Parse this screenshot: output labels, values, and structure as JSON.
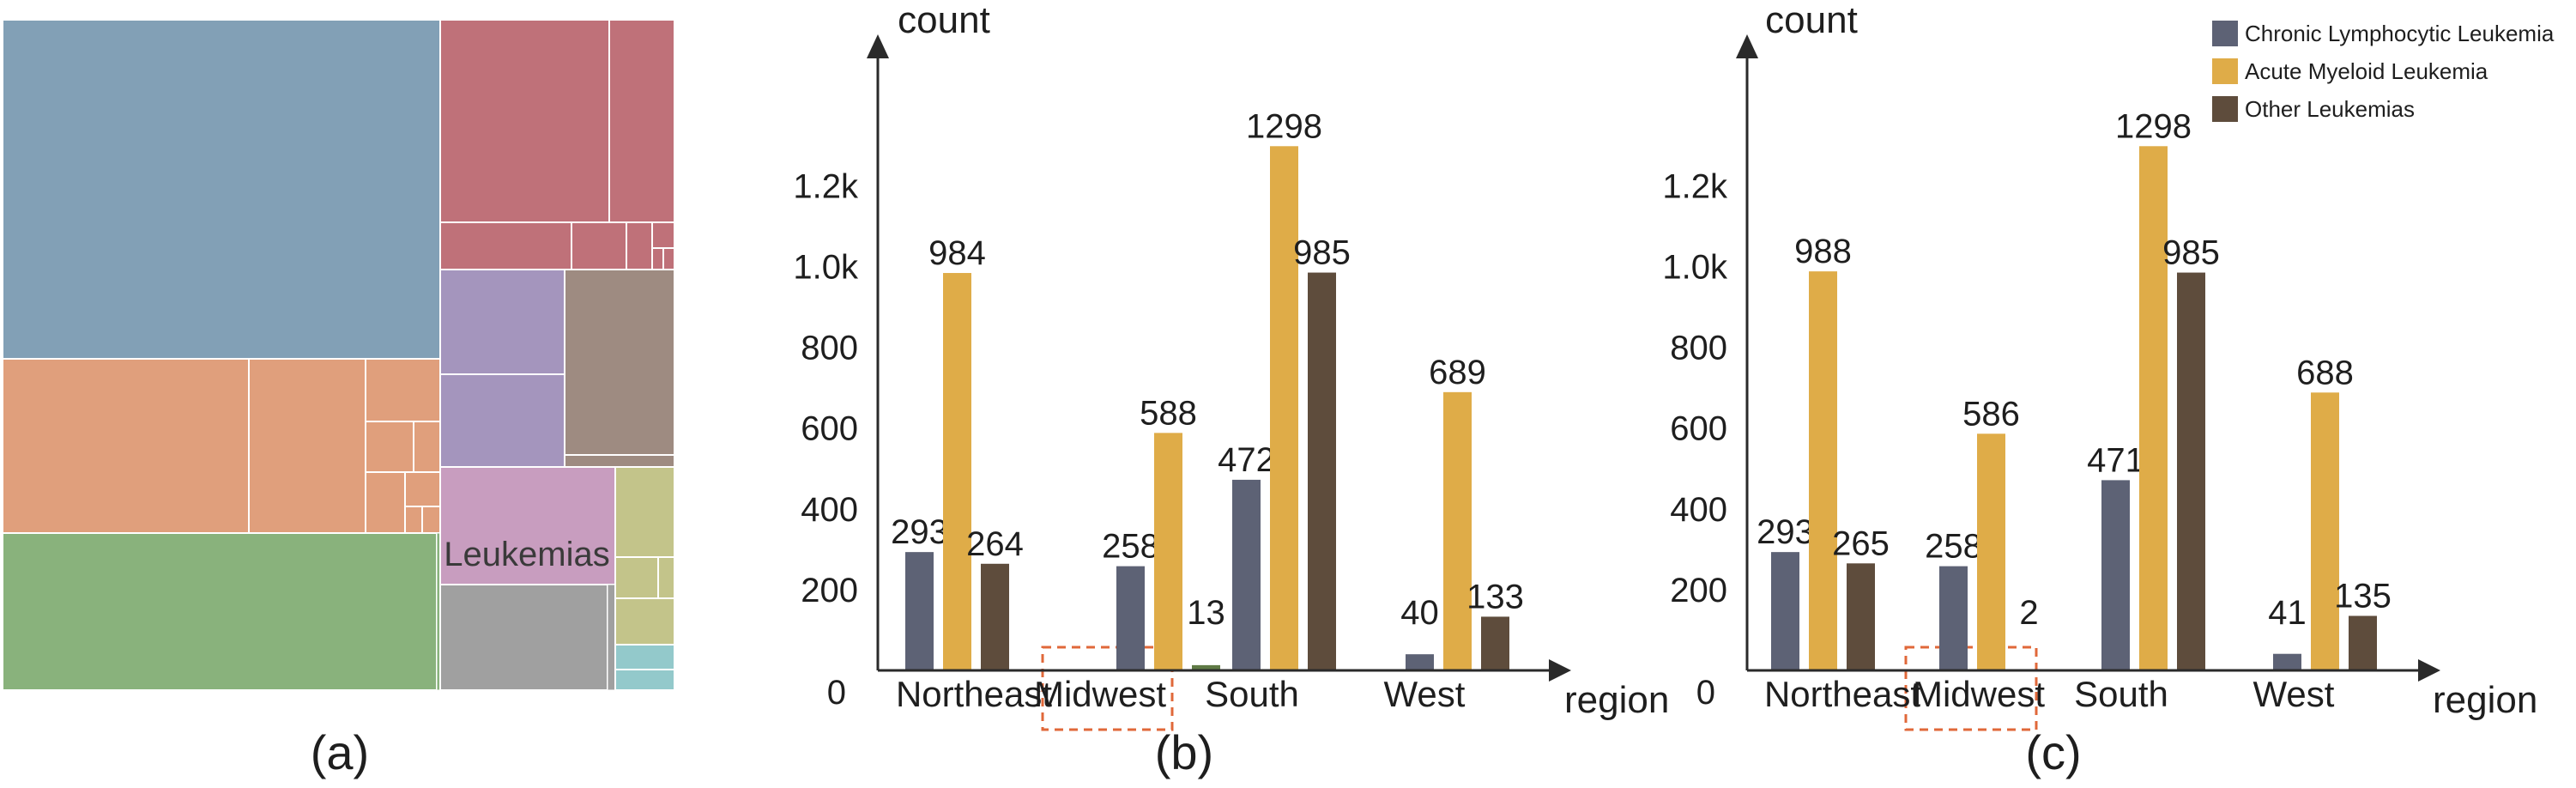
{
  "panels": {
    "a": {
      "caption": "(a)"
    },
    "b": {
      "caption": "(b)"
    },
    "c": {
      "caption": "(c)"
    }
  },
  "colors": {
    "chronic": "#5d6275",
    "acute": "#dfac48",
    "other": "#5e4c3c",
    "small_bar_b": "#5f7a45",
    "highlight": "#e0683a",
    "axis": "#2a2a2a"
  },
  "legend": {
    "items": [
      {
        "label": "Chronic Lymphocytic Leukemia",
        "color": "#5d6275"
      },
      {
        "label": "Acute Myeloid Leukemia",
        "color": "#dfac48"
      },
      {
        "label": "Other Leukemias",
        "color": "#5e4c3c"
      }
    ]
  },
  "treemap": {
    "label": "Leukemias",
    "colors": {
      "blue": "#82a0b6",
      "red": "#bf7179",
      "orange": "#e09f7c",
      "green": "#89b27c",
      "purple": "#a495bd",
      "taupe": "#9e8b81",
      "pink": "#c89dbf",
      "gray": "#a0a0a0",
      "olive": "#c3c48a",
      "teal": "#93c9cb"
    }
  },
  "chart_data": [
    {
      "type": "bar",
      "panel": "b",
      "xlabel": "region",
      "ylabel": "count",
      "categories": [
        "Northeast",
        "Midwest",
        "South",
        "West"
      ],
      "yticks": [
        "0",
        "200",
        "400",
        "600",
        "800",
        "1.0k",
        "1.2k"
      ],
      "ytick_values": [
        0,
        200,
        400,
        600,
        800,
        1000,
        1200
      ],
      "ylim": [
        0,
        1250
      ],
      "series": [
        {
          "name": "Chronic Lymphocytic Leukemia",
          "values": [
            293,
            258,
            472,
            40
          ]
        },
        {
          "name": "Acute Myeloid Leukemia",
          "values": [
            984,
            588,
            1298,
            689
          ]
        },
        {
          "name": "Other Leukemias",
          "values": [
            264,
            13,
            985,
            133
          ]
        }
      ],
      "highlight_category": "Midwest"
    },
    {
      "type": "bar",
      "panel": "c",
      "xlabel": "region",
      "ylabel": "count",
      "categories": [
        "Northeast",
        "Midwest",
        "South",
        "West"
      ],
      "yticks": [
        "0",
        "200",
        "400",
        "600",
        "800",
        "1.0k",
        "1.2k"
      ],
      "ytick_values": [
        0,
        200,
        400,
        600,
        800,
        1000,
        1200
      ],
      "ylim": [
        0,
        1250
      ],
      "series": [
        {
          "name": "Chronic Lymphocytic Leukemia",
          "values": [
            293,
            258,
            471,
            41
          ]
        },
        {
          "name": "Acute Myeloid Leukemia",
          "values": [
            988,
            586,
            1298,
            688
          ]
        },
        {
          "name": "Other Leukemias",
          "values": [
            265,
            2,
            985,
            135
          ]
        }
      ],
      "highlight_category": "Midwest"
    }
  ]
}
